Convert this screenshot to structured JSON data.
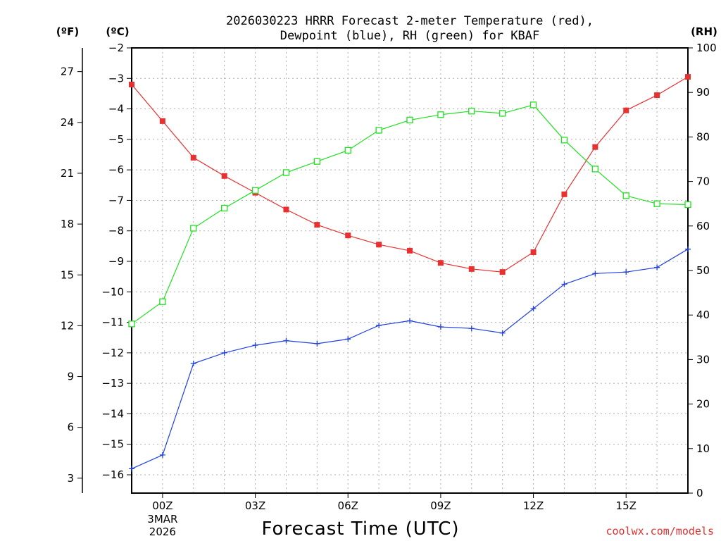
{
  "chart_data": {
    "type": "line",
    "title_lines": [
      "2026030223 HRRR Forecast 2-meter Temperature (red),",
      "Dewpoint (blue), RH (green) for KBAF"
    ],
    "xlabel": "Forecast Time (UTC)",
    "credit": "coolwx.com/models",
    "units": {
      "fahrenheit": "(ºF)",
      "celsius": "(ºC)",
      "rh": "(RH)"
    },
    "x_hours": [
      -1,
      0,
      1,
      2,
      3,
      4,
      5,
      6,
      7,
      8,
      9,
      10,
      11,
      12,
      13,
      14,
      15,
      16,
      17
    ],
    "xlim": [
      -1,
      17
    ],
    "x_ticks": [
      {
        "hour": 0,
        "label": "00Z",
        "sub": [
          "3MAR",
          "2026"
        ]
      },
      {
        "hour": 3,
        "label": "03Z"
      },
      {
        "hour": 6,
        "label": "06Z"
      },
      {
        "hour": 9,
        "label": "09Z"
      },
      {
        "hour": 12,
        "label": "12Z"
      },
      {
        "hour": 15,
        "label": "15Z"
      }
    ],
    "celsius_axis": {
      "min": -16.6,
      "max": -2,
      "ticks": [
        "-2",
        "-3",
        "-4",
        "-5",
        "-6",
        "-7",
        "-8",
        "-9",
        "-10",
        "-11",
        "-12",
        "-13",
        "-14",
        "-15",
        "-16"
      ]
    },
    "fahrenheit_axis": {
      "ticks": [
        "27",
        "24",
        "21",
        "18",
        "15",
        "12",
        "9",
        "6",
        "3"
      ]
    },
    "rh_axis": {
      "min": 0,
      "max": 100,
      "ticks": [
        "100",
        "90",
        "80",
        "70",
        "60",
        "50",
        "40",
        "30",
        "20",
        "10",
        "0"
      ]
    },
    "series": [
      {
        "name": "Temperature",
        "units": "C",
        "color": "#e83030",
        "marker": "filled-square",
        "values": [
          -3.2,
          -4.4,
          -5.6,
          -6.2,
          -6.75,
          -7.3,
          -7.8,
          -8.15,
          -8.45,
          -8.65,
          -9.05,
          -9.25,
          -9.35,
          -8.7,
          -6.8,
          -5.25,
          -4.05,
          -3.55,
          -2.95
        ]
      },
      {
        "name": "Dewpoint",
        "units": "C",
        "color": "#2040e0",
        "marker": "plus",
        "values": [
          -15.8,
          -15.35,
          -12.35,
          -12.0,
          -11.75,
          -11.6,
          -11.7,
          -11.55,
          -11.1,
          -10.95,
          -11.15,
          -11.2,
          -11.35,
          -10.55,
          -9.75,
          -9.4,
          -9.35,
          -9.2,
          -8.6
        ]
      },
      {
        "name": "RH",
        "units": "%",
        "color": "#20e020",
        "marker": "open-square",
        "values": [
          38,
          43,
          59.5,
          64,
          68,
          72,
          74.5,
          77,
          81.5,
          83.8,
          85,
          85.8,
          85.3,
          87.2,
          79.3,
          72.8,
          66.8,
          65,
          64.8
        ]
      }
    ]
  }
}
